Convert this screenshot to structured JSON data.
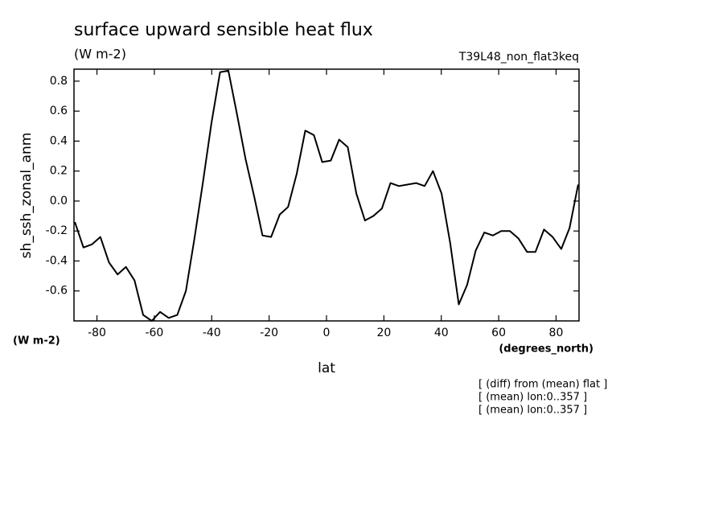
{
  "chart_data": {
    "type": "line",
    "title": "surface upward sensible heat flux",
    "units": "(W m-2)",
    "experiment": "T39L48_non_flat3keq",
    "y_label": "sh_ssh_zonal_anm",
    "y_units": "(W m-2)",
    "x_units": "(degrees_north)",
    "x_label": "lat",
    "notes": [
      "[ (diff) from (mean) flat ]",
      "[ (mean) lon:0..357 ]",
      "[ (mean) lon:0..357 ]"
    ],
    "x": [
      -87.7,
      -84.7,
      -81.8,
      -78.8,
      -75.8,
      -72.8,
      -69.9,
      -66.9,
      -63.9,
      -60.9,
      -58.0,
      -55.0,
      -52.0,
      -49.0,
      -46.1,
      -43.1,
      -40.1,
      -37.1,
      -34.2,
      -31.2,
      -28.2,
      -25.2,
      -22.3,
      -19.3,
      -16.3,
      -13.4,
      -10.4,
      -7.4,
      -4.4,
      -1.5,
      1.5,
      4.4,
      7.4,
      10.4,
      13.4,
      16.3,
      19.3,
      22.3,
      25.2,
      28.2,
      31.2,
      34.2,
      37.1,
      40.1,
      43.1,
      46.1,
      49.0,
      52.0,
      55.0,
      58.0,
      60.9,
      63.9,
      66.9,
      69.9,
      72.8,
      75.8,
      78.8,
      81.8,
      84.7,
      87.7
    ],
    "series": [
      {
        "name": "sh_ssh_zonal_anm",
        "color": "#000000",
        "values": [
          -0.14,
          -0.31,
          -0.29,
          -0.24,
          -0.41,
          -0.49,
          -0.44,
          -0.53,
          -0.76,
          -0.8,
          -0.74,
          -0.78,
          -0.76,
          -0.6,
          -0.26,
          0.12,
          0.52,
          0.86,
          0.87,
          0.58,
          0.28,
          0.03,
          -0.23,
          -0.24,
          -0.09,
          -0.04,
          0.18,
          0.47,
          0.44,
          0.26,
          0.27,
          0.41,
          0.36,
          0.05,
          -0.13,
          -0.1,
          -0.05,
          0.12,
          0.1,
          0.11,
          0.12,
          0.1,
          0.2,
          0.05,
          -0.28,
          -0.69,
          -0.56,
          -0.33,
          -0.21,
          -0.23,
          -0.2,
          -0.2,
          -0.25,
          -0.34,
          -0.34,
          -0.19,
          -0.24,
          -0.32,
          -0.18,
          0.11
        ]
      }
    ],
    "xlim": [
      -88,
      88
    ],
    "ylim": [
      -0.8,
      0.88
    ],
    "xticks": [
      -80,
      -60,
      -40,
      -20,
      0,
      20,
      40,
      60,
      80
    ],
    "yticks": [
      -0.6,
      -0.4,
      -0.2,
      {
        "value": 0,
        "label": "0.0"
      },
      0.2,
      0.4,
      0.6,
      0.8
    ]
  }
}
